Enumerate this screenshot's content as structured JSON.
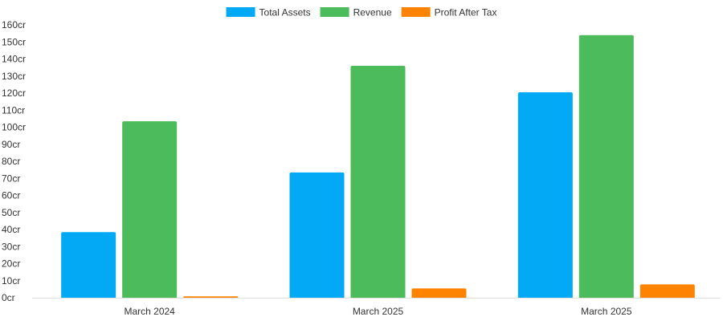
{
  "chart_data": {
    "type": "bar",
    "title": "",
    "xlabel": "",
    "ylabel": "",
    "categories": [
      "March 2024",
      "March 2025",
      "March 2025"
    ],
    "series": [
      {
        "name": "Total Assets",
        "color": "#03a9f4",
        "values": [
          38.5,
          73.5,
          120.5
        ]
      },
      {
        "name": "Revenue",
        "color": "#4cbb5c",
        "values": [
          103.5,
          136,
          154
        ]
      },
      {
        "name": "Profit After Tax",
        "color": "#ff8303",
        "values": [
          0.8,
          5.5,
          7.8
        ]
      }
    ],
    "ylim": [
      0,
      160
    ],
    "y_ticks": [
      "0cr",
      "10cr",
      "20cr",
      "30cr",
      "40cr",
      "50cr",
      "60cr",
      "70cr",
      "80cr",
      "90cr",
      "100cr",
      "110cr",
      "120cr",
      "130cr",
      "140cr",
      "150cr",
      "160cr"
    ],
    "grid": false,
    "legend_position": "top-center"
  }
}
